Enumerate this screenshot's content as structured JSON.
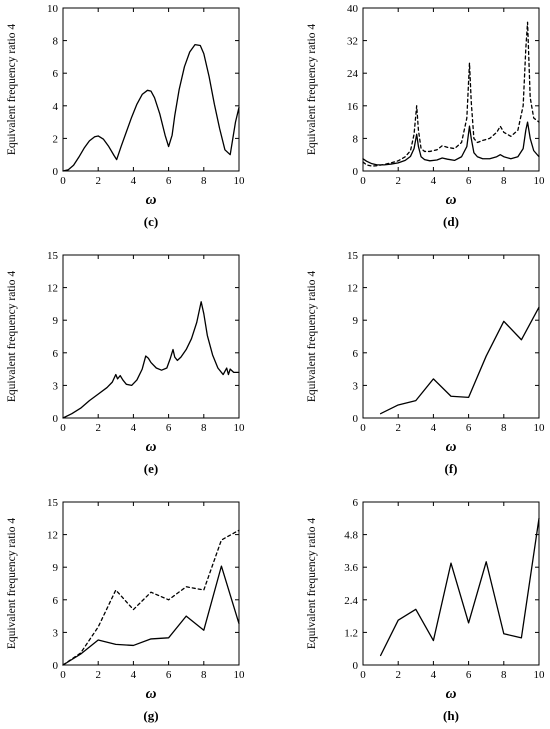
{
  "figure": {
    "panels": [
      {
        "caption": "(c)"
      },
      {
        "caption": "(d)"
      },
      {
        "caption": "(e)"
      },
      {
        "caption": "(f)"
      },
      {
        "caption": "(g)"
      },
      {
        "caption": "(h)"
      }
    ]
  },
  "chart_data": [
    {
      "type": "line",
      "caption": "(c)",
      "ylabel": "Equivalent frequency ratio  4",
      "xlabel": "ω",
      "xlim": [
        0,
        10
      ],
      "ylim": [
        0,
        10
      ],
      "xticks": [
        0,
        2,
        4,
        6,
        8,
        10
      ],
      "yticks": [
        0,
        2,
        4,
        6,
        8,
        10
      ],
      "series": [
        {
          "style": "solid",
          "x": [
            0,
            0.3,
            0.6,
            0.9,
            1.2,
            1.5,
            1.8,
            2.0,
            2.3,
            2.6,
            2.9,
            3.05,
            3.3,
            3.6,
            3.9,
            4.2,
            4.5,
            4.8,
            5.0,
            5.2,
            5.5,
            5.8,
            6.0,
            6.2,
            6.35,
            6.6,
            6.9,
            7.2,
            7.5,
            7.8,
            8.0,
            8.3,
            8.6,
            8.9,
            9.2,
            9.5,
            9.65,
            9.8,
            10.0
          ],
          "y": [
            0,
            0.08,
            0.35,
            0.85,
            1.4,
            1.85,
            2.1,
            2.15,
            1.95,
            1.5,
            0.95,
            0.7,
            1.5,
            2.4,
            3.3,
            4.1,
            4.7,
            4.95,
            4.9,
            4.5,
            3.5,
            2.2,
            1.5,
            2.2,
            3.4,
            5.0,
            6.4,
            7.3,
            7.75,
            7.7,
            7.2,
            5.8,
            4.1,
            2.6,
            1.3,
            1.0,
            2.0,
            3.0,
            3.9
          ]
        }
      ]
    },
    {
      "type": "line",
      "caption": "(d)",
      "ylabel": "Equivalent frequency ratio  4",
      "xlabel": "ω",
      "xlim": [
        0,
        10
      ],
      "ylim": [
        0,
        40
      ],
      "xticks": [
        0,
        2,
        4,
        6,
        8,
        10
      ],
      "yticks": [
        0,
        8,
        16,
        24,
        32,
        40
      ],
      "series": [
        {
          "style": "solid",
          "x": [
            0,
            0.2,
            0.5,
            0.8,
            1.2,
            1.6,
            2.0,
            2.4,
            2.7,
            2.9,
            3.05,
            3.15,
            3.3,
            3.5,
            3.8,
            4.2,
            4.5,
            4.8,
            5.2,
            5.6,
            5.9,
            6.05,
            6.15,
            6.3,
            6.5,
            6.8,
            7.2,
            7.6,
            7.8,
            8.0,
            8.4,
            8.8,
            9.1,
            9.25,
            9.35,
            9.5,
            9.7,
            10.0
          ],
          "y": [
            3.0,
            2.4,
            1.8,
            1.5,
            1.5,
            1.7,
            2.0,
            2.6,
            3.6,
            5.5,
            9.0,
            6.0,
            3.5,
            2.8,
            2.5,
            2.7,
            3.2,
            2.9,
            2.6,
            3.5,
            6.0,
            11.0,
            8.0,
            4.5,
            3.5,
            3.0,
            3.0,
            3.5,
            4.0,
            3.5,
            3.0,
            3.5,
            5.5,
            10.0,
            12.0,
            8.0,
            5.0,
            3.5
          ]
        },
        {
          "style": "dashed",
          "x": [
            0,
            0.2,
            0.5,
            0.8,
            1.2,
            1.6,
            2.0,
            2.4,
            2.7,
            2.9,
            3.05,
            3.15,
            3.3,
            3.5,
            3.8,
            4.2,
            4.5,
            4.8,
            5.2,
            5.6,
            5.9,
            6.05,
            6.15,
            6.3,
            6.5,
            6.8,
            7.2,
            7.6,
            7.8,
            8.0,
            8.4,
            8.8,
            9.1,
            9.25,
            9.35,
            9.5,
            9.7,
            10.0
          ],
          "y": [
            2.2,
            1.5,
            1.2,
            1.3,
            1.6,
            2.0,
            2.5,
            3.5,
            5.0,
            9.0,
            16.0,
            10.0,
            5.5,
            4.8,
            4.8,
            5.2,
            6.2,
            5.8,
            5.5,
            7.0,
            13.0,
            26.5,
            17.0,
            8.0,
            7.0,
            7.5,
            8.0,
            9.5,
            11.0,
            9.5,
            8.5,
            10.0,
            16.0,
            30.0,
            36.5,
            18.0,
            13.0,
            12.0
          ]
        }
      ]
    },
    {
      "type": "line",
      "caption": "(e)",
      "ylabel": "Equivalent frequency ratio  4",
      "xlabel": "ω",
      "xlim": [
        0,
        10
      ],
      "ylim": [
        0,
        15
      ],
      "xticks": [
        0,
        2,
        4,
        6,
        8,
        10
      ],
      "yticks": [
        0,
        3,
        6,
        9,
        12,
        15
      ],
      "series": [
        {
          "style": "solid",
          "x": [
            0,
            0.5,
            1.0,
            1.5,
            2.0,
            2.5,
            2.8,
            3.0,
            3.1,
            3.25,
            3.4,
            3.6,
            3.9,
            4.2,
            4.5,
            4.7,
            4.85,
            5.0,
            5.3,
            5.6,
            5.9,
            6.1,
            6.25,
            6.35,
            6.5,
            6.7,
            7.0,
            7.3,
            7.6,
            7.85,
            8.0,
            8.2,
            8.5,
            8.8,
            9.1,
            9.3,
            9.4,
            9.5,
            9.7,
            10.0
          ],
          "y": [
            0,
            0.4,
            0.9,
            1.6,
            2.2,
            2.8,
            3.3,
            4.0,
            3.6,
            3.9,
            3.5,
            3.1,
            3.0,
            3.5,
            4.5,
            5.7,
            5.5,
            5.1,
            4.6,
            4.4,
            4.6,
            5.5,
            6.3,
            5.6,
            5.3,
            5.6,
            6.3,
            7.3,
            8.8,
            10.7,
            9.6,
            7.6,
            5.8,
            4.6,
            4.0,
            4.6,
            4.0,
            4.5,
            4.2,
            4.2
          ]
        }
      ]
    },
    {
      "type": "line",
      "caption": "(f)",
      "ylabel": "Equivalent frequency ratio  4",
      "xlabel": "ω",
      "xlim": [
        0,
        10
      ],
      "ylim": [
        0,
        15
      ],
      "xticks": [
        0,
        2,
        4,
        6,
        8,
        10
      ],
      "yticks": [
        0,
        3,
        6,
        9,
        12,
        15
      ],
      "series": [
        {
          "style": "solid",
          "x": [
            1,
            2,
            3,
            4,
            5,
            6,
            7,
            8,
            9,
            10
          ],
          "y": [
            0.4,
            1.2,
            1.6,
            3.6,
            2.0,
            1.9,
            5.7,
            8.9,
            7.2,
            10.2
          ]
        }
      ]
    },
    {
      "type": "line",
      "caption": "(g)",
      "ylabel": "Equivalent frequency ratio  4",
      "xlabel": "ω",
      "xlim": [
        0,
        10
      ],
      "ylim": [
        0,
        15
      ],
      "xticks": [
        0,
        2,
        4,
        6,
        8,
        10
      ],
      "yticks": [
        0,
        3,
        6,
        9,
        12,
        15
      ],
      "series": [
        {
          "style": "solid",
          "x": [
            0,
            1,
            2,
            3,
            4,
            5,
            6,
            7,
            8,
            9,
            10
          ],
          "y": [
            0,
            1.0,
            2.3,
            1.9,
            1.8,
            2.4,
            2.5,
            4.5,
            3.2,
            9.1,
            3.8
          ]
        },
        {
          "style": "dashed",
          "x": [
            0,
            1,
            2,
            3,
            4,
            5,
            6,
            7,
            8,
            9,
            10
          ],
          "y": [
            0,
            1.1,
            3.5,
            6.9,
            5.1,
            6.7,
            6.0,
            7.2,
            6.9,
            11.5,
            12.4
          ]
        }
      ]
    },
    {
      "type": "line",
      "caption": "(h)",
      "ylabel": "Equivalent frequency ratio  4",
      "xlabel": "ω",
      "xlim": [
        0,
        10
      ],
      "ylim": [
        0,
        6
      ],
      "xticks": [
        0,
        2,
        4,
        6,
        8,
        10
      ],
      "yticks": [
        "0",
        "1.2",
        "2.4",
        "3.6",
        "4.8",
        "6"
      ],
      "series": [
        {
          "style": "solid",
          "x": [
            1,
            2,
            3,
            4,
            5,
            6,
            7,
            8,
            9,
            10
          ],
          "y": [
            0.35,
            1.65,
            2.05,
            0.9,
            3.75,
            1.55,
            3.8,
            1.15,
            1.0,
            5.4
          ]
        }
      ]
    }
  ]
}
